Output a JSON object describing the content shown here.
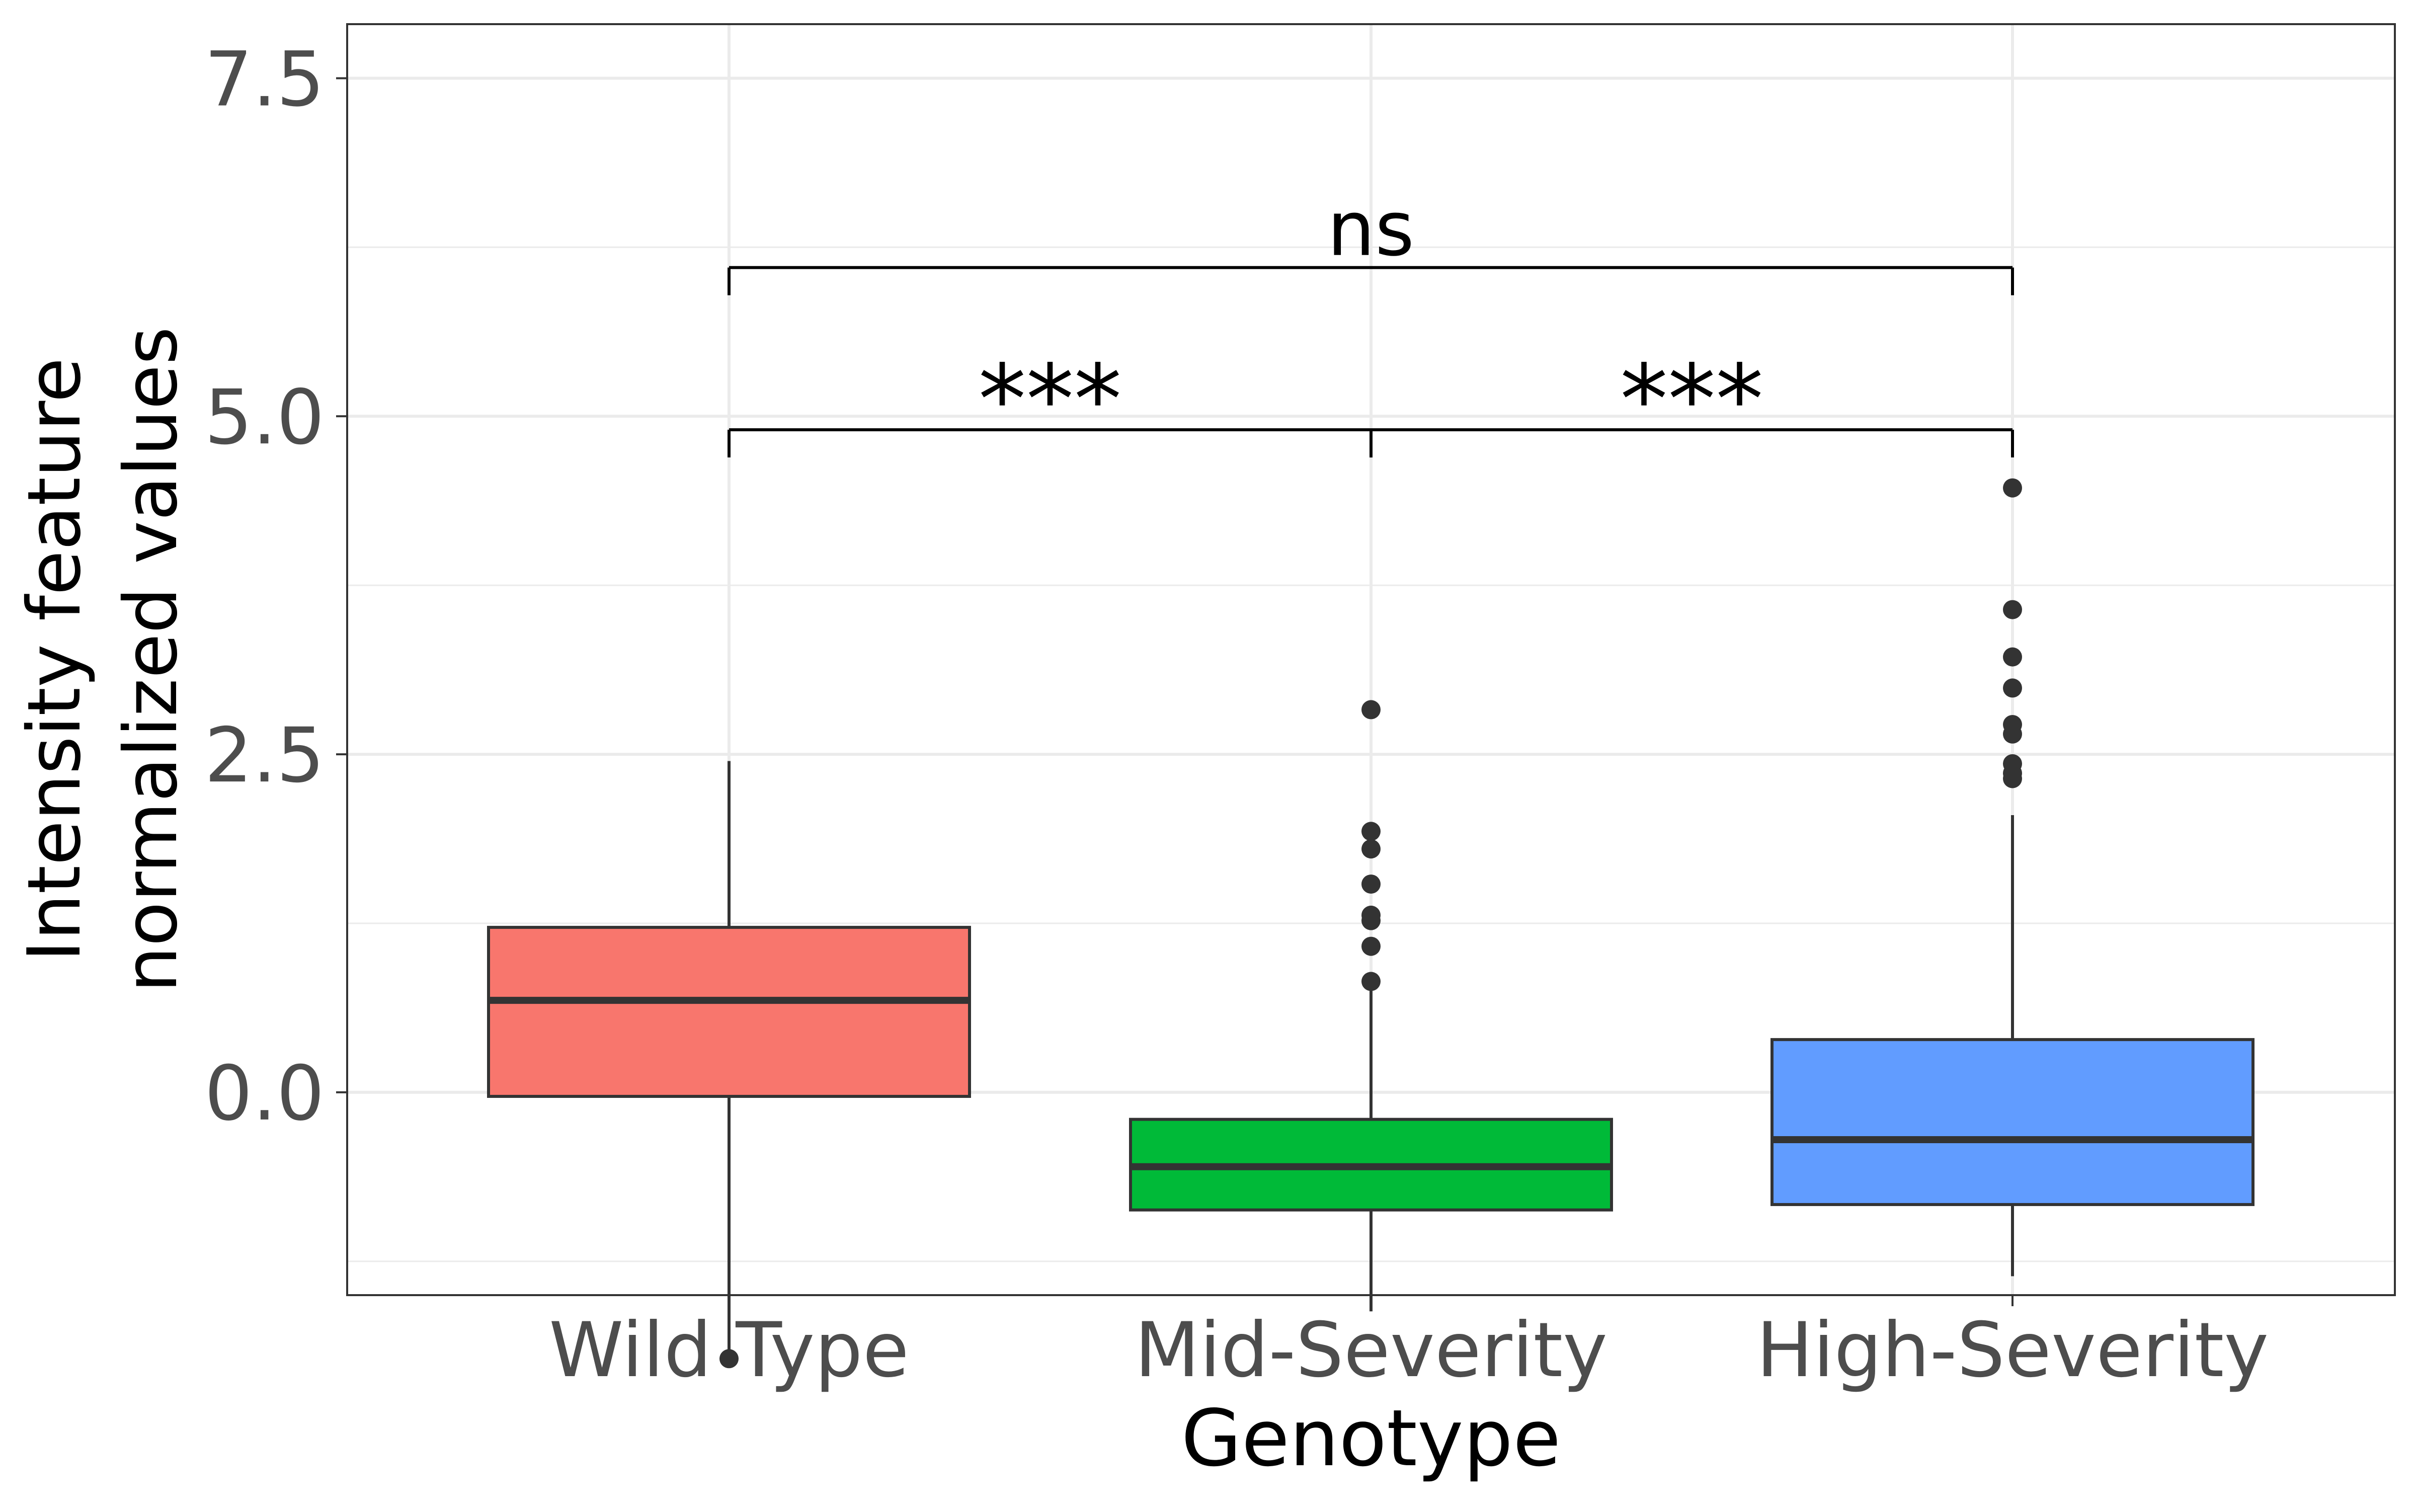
{
  "chart_data": {
    "type": "boxplot",
    "xlabel": "Genotype",
    "ylabel_lines": [
      "Intensity feature",
      "normalized values"
    ],
    "ylim": [
      -1.5,
      7.9
    ],
    "y_ticks": [
      0.0,
      2.5,
      5.0,
      7.5
    ],
    "y_tick_labels": [
      "0.0",
      "2.5",
      "5.0",
      "7.5"
    ],
    "categories": [
      "Wild Type",
      "Mid-Severity",
      "High-Severity"
    ],
    "grid": true,
    "legend": "none",
    "boxes": [
      {
        "name": "Wild Type",
        "color": "#F8766D",
        "q1": -0.03,
        "median": 0.68,
        "q3": 1.22,
        "whisker_low": -1.95,
        "whisker_high": 2.45,
        "outliers": [
          -1.97
        ]
      },
      {
        "name": "Mid-Severity",
        "color": "#00BA38",
        "q1": -0.87,
        "median": -0.55,
        "q3": -0.2,
        "whisker_low": -1.62,
        "whisker_high": 0.82,
        "outliers": [
          0.82,
          1.08,
          1.27,
          1.31,
          1.54,
          1.8,
          1.93,
          2.83
        ]
      },
      {
        "name": "High-Severity",
        "color": "#619CFF",
        "q1": -0.83,
        "median": -0.35,
        "q3": 0.39,
        "whisker_low": -1.36,
        "whisker_high": 2.05,
        "outliers": [
          2.32,
          2.36,
          2.43,
          2.65,
          2.72,
          2.99,
          3.22,
          3.57,
          4.47
        ]
      }
    ],
    "annotations": [
      {
        "from": 0,
        "to": 1,
        "y": 4.9,
        "label": "***"
      },
      {
        "from": 1,
        "to": 2,
        "y": 4.9,
        "label": "***"
      },
      {
        "from": 0,
        "to": 2,
        "y": 6.1,
        "label": "ns"
      }
    ]
  }
}
